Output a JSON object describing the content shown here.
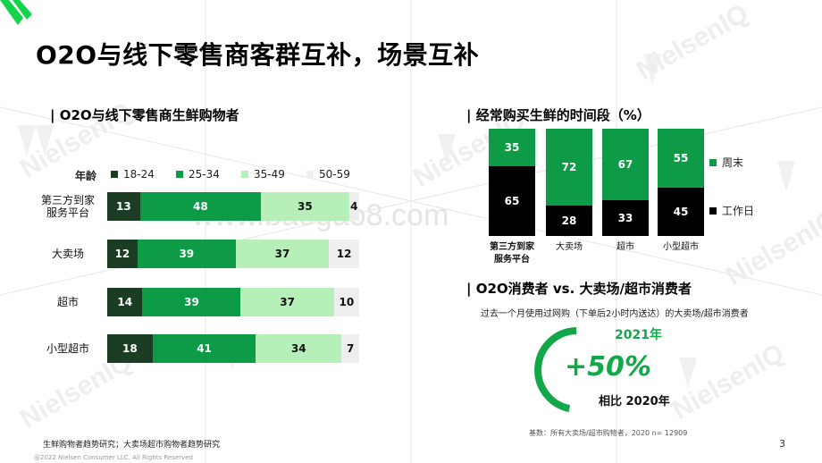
{
  "page": {
    "title": "O2O与线下零售商客群互补，场景互补",
    "page_number": "3",
    "colors": {
      "dark": "#1a3d24",
      "green": "#0d9b47",
      "light": "#b6f0b8",
      "pale": "#eeeeee",
      "black": "#000000",
      "accent": "#12a84a"
    }
  },
  "watermark": {
    "brand": "NielsenIQ",
    "site": "www.baogao8.com"
  },
  "left_chart": {
    "section_title": "| O2O与线下零售商生鲜购物者",
    "legend_title": "年龄",
    "chart_data": {
      "type": "bar",
      "orientation": "horizontal",
      "stacked": true,
      "categories": [
        "第三方到家服务平台",
        "大卖场",
        "超市",
        "小型超市"
      ],
      "category_lines": [
        [
          "第三方到家",
          "服务平台"
        ],
        [
          "大卖场"
        ],
        [
          "超市"
        ],
        [
          "小型超市"
        ]
      ],
      "series": [
        {
          "name": "18-24",
          "values": [
            13,
            12,
            14,
            18
          ],
          "color": "#1a3d24",
          "text_color": "#ffffff"
        },
        {
          "name": "25-34",
          "values": [
            48,
            39,
            39,
            41
          ],
          "color": "#0d9b47",
          "text_color": "#ffffff"
        },
        {
          "name": "35-49",
          "values": [
            35,
            37,
            37,
            34
          ],
          "color": "#b6f0b8",
          "text_color": "#111111"
        },
        {
          "name": "50-59",
          "values": [
            4,
            12,
            10,
            7
          ],
          "color": "#eeeeee",
          "text_color": "#111111"
        }
      ]
    }
  },
  "right_chart": {
    "section_title": "| 经常购买生鲜的时间段（%）",
    "chart_data": {
      "type": "bar",
      "orientation": "vertical",
      "stacked": true,
      "categories": [
        "第三方到家服务平台",
        "大卖场",
        "超市",
        "小型超市"
      ],
      "category_lines": [
        [
          "第三方到家",
          "服务平台"
        ],
        [
          "大卖场"
        ],
        [
          "超市"
        ],
        [
          "小型超市"
        ]
      ],
      "series": [
        {
          "name": "工作日",
          "values": [
            65,
            28,
            33,
            45
          ],
          "color": "#000000",
          "text_color": "#ffffff"
        },
        {
          "name": "周末",
          "values": [
            35,
            72,
            67,
            55
          ],
          "color": "#0d9b47",
          "text_color": "#ffffff"
        }
      ]
    }
  },
  "o2o": {
    "section_title": "| O2O消费者 vs. 大卖场/超市消费者",
    "subtitle": "过去一个月使用过网购（下单后2小时内送达）的大卖场/超市消费者",
    "year": "2021年",
    "growth": "+50%",
    "compare": "相比 2020年",
    "growth_ratio": 0.5,
    "base_note": "基数：所有大卖场/超市购物者，2020 n= 12909"
  },
  "footer": {
    "source": "生鲜购物者趋势研究；大卖场超市购物者趋势研究",
    "copyright": "@2022 Nielsen Consumer LLC. All Rights Reserved"
  }
}
